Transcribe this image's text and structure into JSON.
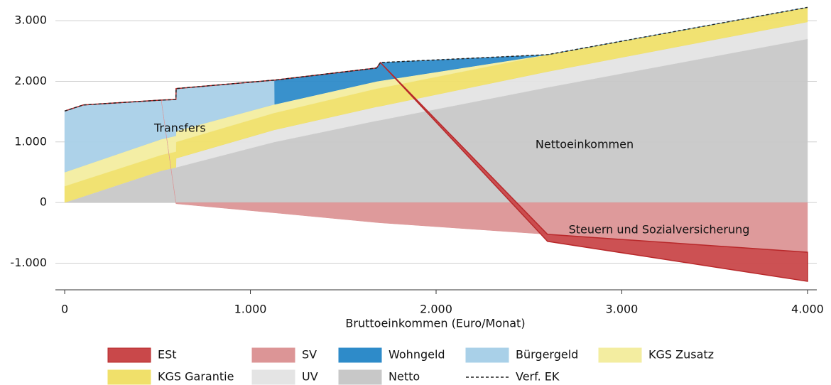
{
  "chart_data": {
    "type": "area",
    "xlabel": "Bruttoeinkommen (Euro/Monat)",
    "annotations": [
      "Transfers",
      "Nettoeinkommen",
      "Steuern und Sozialversicherung"
    ],
    "x": [
      0,
      100,
      520,
      599,
      600,
      1130,
      1131,
      1680,
      1700,
      2600,
      4000
    ],
    "series": [
      {
        "name": "ESt",
        "color": "#c9484a",
        "values": [
          0,
          0,
          0,
          0,
          0,
          0,
          0,
          0,
          0,
          -115,
          -480
        ]
      },
      {
        "name": "SV",
        "color": "#dc9596",
        "values": [
          0,
          0,
          0,
          -20,
          -20,
          -170,
          -170,
          -330,
          -335,
          -525,
          -820
        ]
      },
      {
        "name": "Wohngeld",
        "color": "#2e8bc9",
        "values": [
          0,
          0,
          0,
          0,
          0,
          0,
          400,
          220,
          300,
          0,
          0
        ]
      },
      {
        "name": "Bürgergeld",
        "color": "#a9d0e8",
        "values": [
          1010,
          1005,
          645,
          600,
          700,
          400,
          0,
          0,
          0,
          0,
          0
        ]
      },
      {
        "name": "KGS Zusatz",
        "color": "#f3eda0",
        "values": [
          230,
          235,
          260,
          260,
          180,
          140,
          140,
          120,
          120,
          0,
          0
        ]
      },
      {
        "name": "KGS Garantie",
        "color": "#f0e06a",
        "values": [
          270,
          270,
          260,
          260,
          270,
          280,
          280,
          300,
          300,
          280,
          240
        ]
      },
      {
        "name": "UV",
        "color": "#e4e4e4",
        "values": [
          0,
          0,
          0,
          0,
          150,
          200,
          200,
          230,
          230,
          260,
          280
        ]
      },
      {
        "name": "Netto",
        "color": "#c8c8c8",
        "values": [
          0,
          100,
          525,
          580,
          580,
          1000,
          1000,
          1350,
          1360,
          1900,
          2700
        ]
      },
      {
        "name": "Verf. EK",
        "color": "#222222",
        "line": "dashed",
        "values": [
          1510,
          1610,
          1690,
          1700,
          1880,
          2020,
          2020,
          2220,
          2310,
          2440,
          3220
        ]
      }
    ],
    "xlim": [
      -50,
      4050
    ],
    "ylim": [
      -1440,
      3330
    ],
    "xticks": [
      0,
      {
        "value": 1000,
        "label": "1.000"
      },
      {
        "value": 2000,
        "label": "2.000"
      },
      {
        "value": 3000,
        "label": "3.000"
      },
      {
        "value": 4000,
        "label": "4.000"
      }
    ],
    "yticks": [
      {
        "value": -1000,
        "label": "-1.000"
      },
      0,
      {
        "value": 1000,
        "label": "1.000"
      },
      {
        "value": 2000,
        "label": "2.000"
      },
      {
        "value": 3000,
        "label": "3.000"
      }
    ],
    "grid": true
  }
}
